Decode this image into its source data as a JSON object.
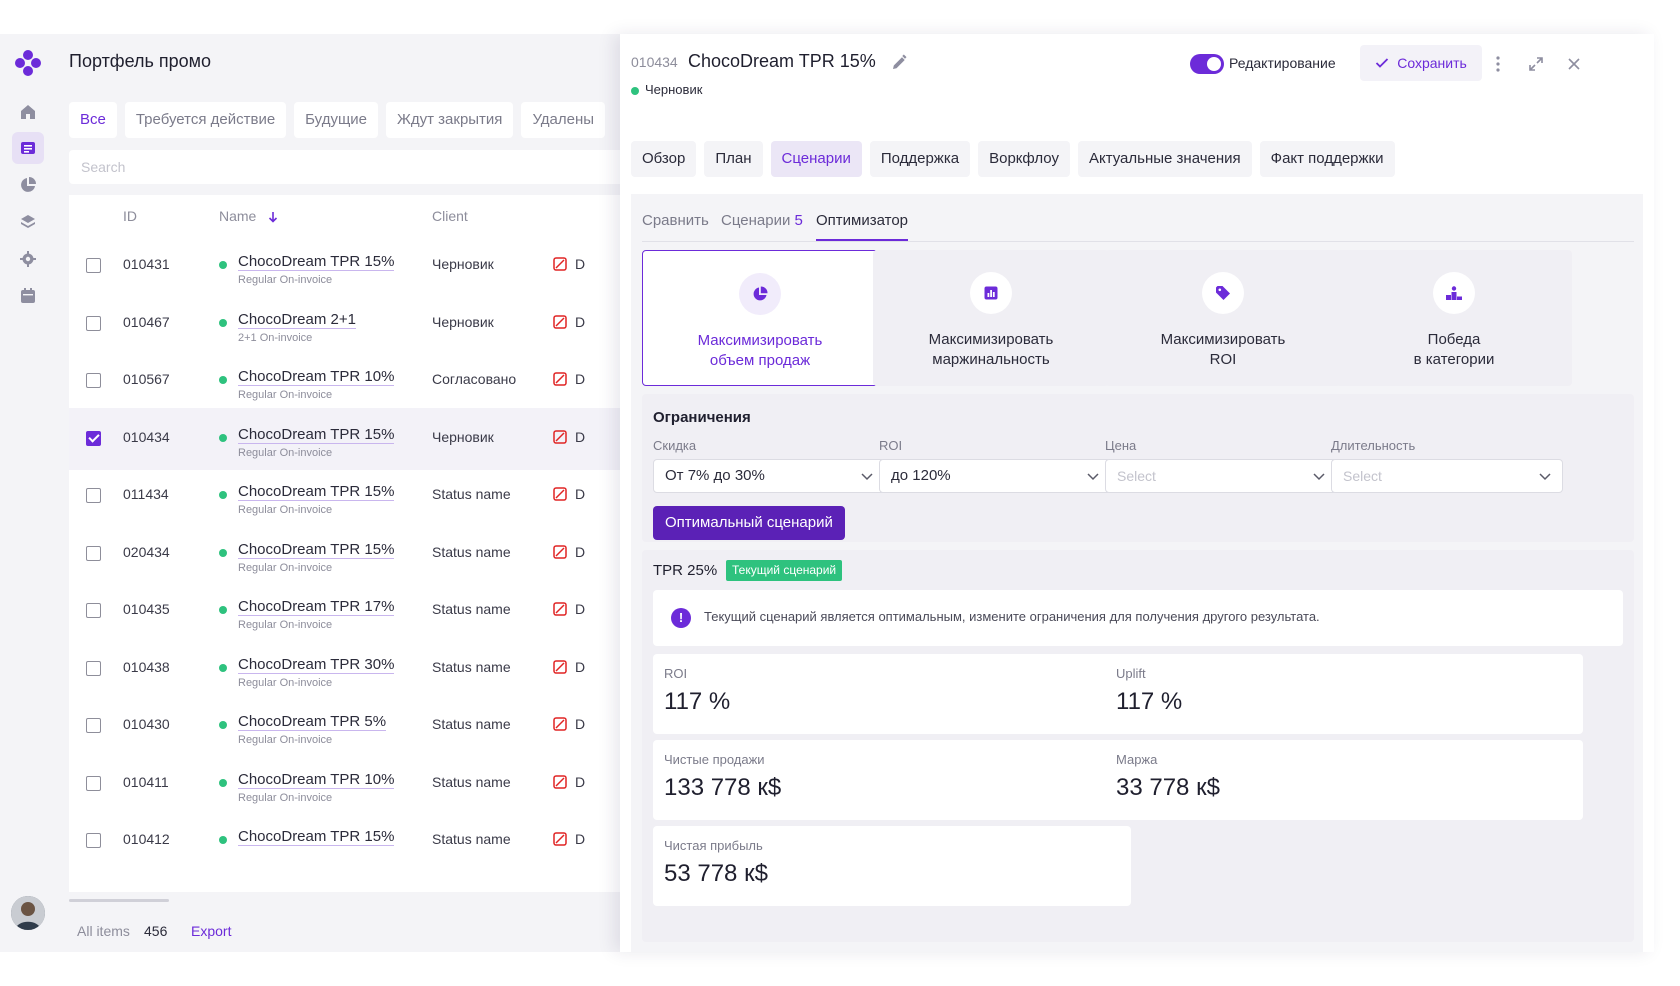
{
  "sidebar": {
    "nav_items": [
      {
        "name": "home",
        "icon": "home-icon",
        "active": false
      },
      {
        "name": "list",
        "icon": "list-icon",
        "active": true
      },
      {
        "name": "reports",
        "icon": "pie-chart-icon",
        "active": false
      },
      {
        "name": "layers",
        "icon": "layers-icon",
        "active": false
      },
      {
        "name": "settings",
        "icon": "gear-icon",
        "active": false
      },
      {
        "name": "calendar",
        "icon": "calendar-icon",
        "active": false
      }
    ]
  },
  "portfolio": {
    "title": "Портфель промо",
    "filter_tabs": [
      "Все",
      "Требуется действие",
      "Будущие",
      "Ждут закрытия",
      "Удалены"
    ],
    "active_filter": 0,
    "search_placeholder": "Search",
    "columns": {
      "id": "ID",
      "name": "Name",
      "client": "Client"
    },
    "rows": [
      {
        "id": "010431",
        "name": "ChocoDream TPR 15%",
        "tags": "Regular  On-invoice",
        "client": "Черновик",
        "extra": "D",
        "checked": false
      },
      {
        "id": "010467",
        "name": "ChocoDream 2+1",
        "tags": "2+1  On-invoice",
        "client": "Черновик",
        "extra": "D",
        "checked": false
      },
      {
        "id": "010567",
        "name": "ChocoDream TPR 10%",
        "tags": "Regular  On-invoice",
        "client": "Согласовано",
        "extra": "D",
        "checked": false
      },
      {
        "id": "010434",
        "name": "ChocoDream TPR 15%",
        "tags": "Regular  On-invoice",
        "client": "Черновик",
        "extra": "D",
        "checked": true
      },
      {
        "id": "011434",
        "name": "ChocoDream TPR 15%",
        "tags": "Regular  On-invoice",
        "client": "Status name",
        "extra": "D",
        "checked": false
      },
      {
        "id": "020434",
        "name": "ChocoDream TPR 15%",
        "tags": "Regular  On-invoice",
        "client": "Status name",
        "extra": "D",
        "checked": false
      },
      {
        "id": "010435",
        "name": "ChocoDream TPR 17%",
        "tags": "Regular  On-invoice",
        "client": "Status name",
        "extra": "D",
        "checked": false
      },
      {
        "id": "010438",
        "name": "ChocoDream TPR 30%",
        "tags": "Regular  On-invoice",
        "client": "Status name",
        "extra": "D",
        "checked": false
      },
      {
        "id": "010430",
        "name": "ChocoDream TPR 5%",
        "tags": "Regular  On-invoice",
        "client": "Status name",
        "extra": "D",
        "checked": false
      },
      {
        "id": "010411",
        "name": "ChocoDream TPR 10%",
        "tags": "Regular  On-invoice",
        "client": "Status name",
        "extra": "D",
        "checked": false
      },
      {
        "id": "010412",
        "name": "ChocoDream TPR 15%",
        "tags": "",
        "client": "Status name",
        "extra": "D",
        "checked": false
      }
    ],
    "footer": {
      "all_items_label": "All items",
      "count": "456",
      "export": "Export"
    }
  },
  "detail": {
    "id": "010434",
    "title": "ChocoDream TPR 15%",
    "status": "Черновик",
    "edit_toggle_label": "Редактирование",
    "edit_toggle_on": true,
    "save_label": "Сохранить",
    "tabs": [
      "Обзор",
      "План",
      "Сценарии",
      "Поддержка",
      "Воркфлоу",
      "Актуальные значения",
      "Факт поддержки"
    ],
    "active_tab": 2,
    "sub_tabs": {
      "compare": "Сравнить",
      "scenarios": "Сценарии",
      "scenarios_count": "5",
      "optimizer": "Оптимизатор"
    },
    "optimizer_cards": [
      {
        "line1": "Максимизировать",
        "line2": "объем продаж",
        "icon": "pie-chart-icon",
        "active": true
      },
      {
        "line1": "Максимизировать",
        "line2": "маржинальность",
        "icon": "bar-chart-icon",
        "active": false
      },
      {
        "line1": "Максимизировать",
        "line2": "ROI",
        "icon": "tag-icon",
        "active": false
      },
      {
        "line1": "Победа",
        "line2": "в категории",
        "icon": "podium-icon",
        "active": false
      }
    ],
    "constraints": {
      "title": "Ограничения",
      "fields": [
        {
          "label": "Скидка",
          "value": "От 7% до 30%",
          "placeholder": ""
        },
        {
          "label": "ROI",
          "value": "до 120%",
          "placeholder": ""
        },
        {
          "label": "Цена",
          "value": "",
          "placeholder": "Select"
        },
        {
          "label": "Длительность",
          "value": "",
          "placeholder": "Select"
        }
      ],
      "button": "Оптимальный сценарий"
    },
    "scenario": {
      "name": "TPR 25%",
      "badge": "Текущий сценарий",
      "info": "Текущий сценарий является оптимальным, измените ограничения для получения другого результата.",
      "metrics": [
        {
          "label": "ROI",
          "value": "117 %"
        },
        {
          "label": "Uplift",
          "value": "117 %"
        },
        {
          "label": "Чистые продажи",
          "value": "133 778 к$"
        },
        {
          "label": "Маржа",
          "value": "33 778 к$"
        },
        {
          "label": "Чистая прибыль",
          "value": "53 778 к$"
        }
      ]
    }
  },
  "colors": {
    "accent": "#6c2bd9",
    "accent_dark": "#5b21b6",
    "success": "#2ec27e",
    "panel_bg": "#f4f4f7"
  }
}
